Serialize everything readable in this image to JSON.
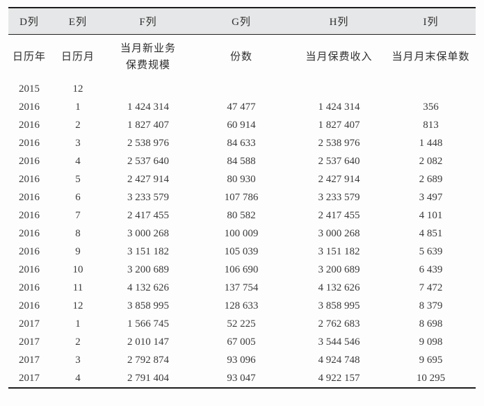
{
  "table": {
    "column_letters": [
      "D列",
      "E列",
      "F列",
      "G列",
      "H列",
      "I列"
    ],
    "field_headers": [
      "日历年",
      "日历月",
      "当月新业务\n保费规模",
      "份数",
      "当月保费收入",
      "当月月末保单数"
    ],
    "rows": [
      [
        "2015",
        "12",
        "",
        "",
        "",
        ""
      ],
      [
        "2016",
        "1",
        "1 424 314",
        "47 477",
        "1 424 314",
        "356"
      ],
      [
        "2016",
        "2",
        "1 827 407",
        "60 914",
        "1 827 407",
        "813"
      ],
      [
        "2016",
        "3",
        "2 538 976",
        "84 633",
        "2 538 976",
        "1 448"
      ],
      [
        "2016",
        "4",
        "2 537 640",
        "84 588",
        "2 537 640",
        "2 082"
      ],
      [
        "2016",
        "5",
        "2 427 914",
        "80 930",
        "2 427 914",
        "2 689"
      ],
      [
        "2016",
        "6",
        "3 233 579",
        "107 786",
        "3 233 579",
        "3 497"
      ],
      [
        "2016",
        "7",
        "2 417 455",
        "80 582",
        "2 417 455",
        "4 101"
      ],
      [
        "2016",
        "8",
        "3 000 268",
        "100 009",
        "3 000 268",
        "4 851"
      ],
      [
        "2016",
        "9",
        "3 151 182",
        "105 039",
        "3 151 182",
        "5 639"
      ],
      [
        "2016",
        "10",
        "3 200 689",
        "106 690",
        "3 200 689",
        "6 439"
      ],
      [
        "2016",
        "11",
        "4 132 626",
        "137 754",
        "4 132 626",
        "7 472"
      ],
      [
        "2016",
        "12",
        "3 858 995",
        "128 633",
        "3 858 995",
        "8 379"
      ],
      [
        "2017",
        "1",
        "1 566 745",
        "52 225",
        "2 762 683",
        "8 698"
      ],
      [
        "2017",
        "2",
        "2 010 147",
        "67 005",
        "3 544 546",
        "9 098"
      ],
      [
        "2017",
        "3",
        "2 792 874",
        "93 096",
        "4 924 748",
        "9 695"
      ],
      [
        "2017",
        "4",
        "2 791 404",
        "93 047",
        "4 922 157",
        "10 295"
      ]
    ]
  },
  "colors": {
    "header_bg": "#e6e7e8",
    "border": "#1c1c1c",
    "text": "#3a3a3a"
  }
}
